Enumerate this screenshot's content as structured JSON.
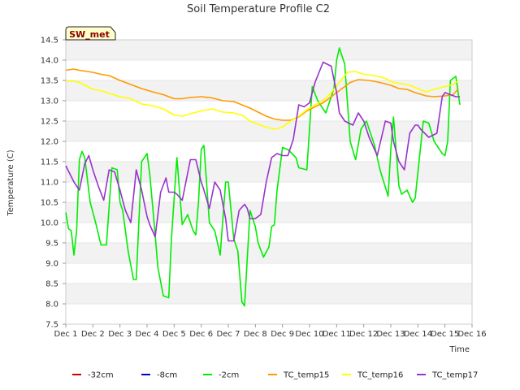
{
  "chart_data": {
    "type": "line",
    "title": "Soil Temperature Profile C2",
    "xlabel": "Time",
    "ylabel": "Temperature (C)",
    "badge": "SW_met",
    "x_range": [
      1,
      16
    ],
    "ylim": [
      7.5,
      14.5
    ],
    "x_ticks": [
      {
        "value": 1,
        "label": "Dec 1"
      },
      {
        "value": 2,
        "label": "Dec 2"
      },
      {
        "value": 3,
        "label": "Dec 3"
      },
      {
        "value": 4,
        "label": "Dec 4"
      },
      {
        "value": 5,
        "label": "Dec 5"
      },
      {
        "value": 6,
        "label": "Dec 6"
      },
      {
        "value": 7,
        "label": "Dec 7"
      },
      {
        "value": 8,
        "label": "Dec 8"
      },
      {
        "value": 9,
        "label": "Dec 9"
      },
      {
        "value": 10,
        "label": "Dec 10"
      },
      {
        "value": 11,
        "label": "Dec 11"
      },
      {
        "value": 12,
        "label": "Dec 12"
      },
      {
        "value": 13,
        "label": "Dec 13"
      },
      {
        "value": 14,
        "label": "Dec 14"
      },
      {
        "value": 15,
        "label": "Dec 15"
      },
      {
        "value": 16,
        "label": "Dec 16"
      }
    ],
    "y_ticks": [
      {
        "value": 7.5,
        "label": "7.5"
      },
      {
        "value": 8.0,
        "label": "8.0"
      },
      {
        "value": 8.5,
        "label": "8.5"
      },
      {
        "value": 9.0,
        "label": "9.0"
      },
      {
        "value": 9.5,
        "label": "9.5"
      },
      {
        "value": 10.0,
        "label": "10.0"
      },
      {
        "value": 10.5,
        "label": "10.5"
      },
      {
        "value": 11.0,
        "label": "11.0"
      },
      {
        "value": 11.5,
        "label": "11.5"
      },
      {
        "value": 12.0,
        "label": "12.0"
      },
      {
        "value": 12.5,
        "label": "12.5"
      },
      {
        "value": 13.0,
        "label": "13.0"
      },
      {
        "value": 13.5,
        "label": "13.5"
      },
      {
        "value": 14.0,
        "label": "14.0"
      },
      {
        "value": 14.5,
        "label": "14.5"
      }
    ],
    "background_bands": "alternating light gray horizontal bands",
    "legend_position": "bottom",
    "series": [
      {
        "name": "-32cm",
        "color": "#cc0000",
        "x": [],
        "y": []
      },
      {
        "name": "-8cm",
        "color": "#0000cc",
        "x": [],
        "y": []
      },
      {
        "name": "-2cm",
        "color": "#00ee00",
        "x": [
          1.0,
          1.1,
          1.2,
          1.3,
          1.4,
          1.5,
          1.6,
          1.7,
          1.9,
          2.1,
          2.3,
          2.5,
          2.7,
          2.9,
          3.0,
          3.1,
          3.3,
          3.5,
          3.6,
          3.8,
          4.0,
          4.1,
          4.3,
          4.4,
          4.6,
          4.8,
          4.9,
          5.1,
          5.3,
          5.5,
          5.7,
          5.8,
          5.9,
          6.0,
          6.1,
          6.3,
          6.5,
          6.6,
          6.7,
          6.9,
          7.0,
          7.2,
          7.35,
          7.5,
          7.6,
          7.8,
          8.0,
          8.1,
          8.3,
          8.5,
          8.6,
          8.7,
          8.8,
          9.0,
          9.2,
          9.5,
          9.6,
          9.9,
          10.1,
          10.3,
          10.6,
          10.9,
          11.0,
          11.1,
          11.3,
          11.5,
          11.7,
          11.9,
          12.1,
          12.4,
          12.6,
          12.9,
          13.0,
          13.1,
          13.3,
          13.4,
          13.6,
          13.8,
          13.9,
          14.2,
          14.4,
          14.6,
          14.9,
          15.0,
          15.1,
          15.2,
          15.4,
          15.55
        ],
        "y": [
          10.25,
          9.85,
          9.8,
          9.2,
          9.8,
          11.55,
          11.75,
          11.6,
          10.5,
          10.0,
          9.45,
          9.45,
          11.35,
          11.3,
          10.5,
          10.3,
          9.3,
          8.6,
          8.6,
          11.5,
          11.7,
          11.2,
          9.7,
          8.9,
          8.2,
          8.15,
          9.6,
          11.6,
          9.95,
          10.2,
          9.8,
          9.7,
          10.5,
          11.8,
          11.9,
          10.0,
          9.8,
          9.5,
          9.2,
          11.0,
          11.0,
          9.6,
          9.3,
          8.05,
          7.95,
          10.3,
          9.9,
          9.5,
          9.15,
          9.4,
          9.9,
          9.95,
          10.8,
          11.85,
          11.8,
          11.6,
          11.35,
          11.3,
          13.35,
          13.0,
          12.7,
          13.3,
          14.0,
          14.3,
          13.9,
          12.0,
          11.55,
          12.3,
          12.5,
          11.9,
          11.3,
          10.65,
          11.8,
          12.6,
          10.9,
          10.7,
          10.8,
          10.5,
          10.6,
          12.5,
          12.45,
          12.0,
          11.7,
          11.65,
          12.0,
          13.5,
          13.6,
          12.9
        ]
      },
      {
        "name": "TC_temp15",
        "color": "#ff9900",
        "x": [
          1.0,
          1.3,
          1.5,
          1.8,
          2.0,
          2.3,
          2.6,
          3.0,
          3.4,
          3.8,
          4.2,
          4.6,
          5.0,
          5.3,
          5.6,
          6.0,
          6.4,
          6.8,
          7.2,
          7.5,
          7.8,
          8.1,
          8.4,
          8.7,
          9.0,
          9.3,
          9.6,
          9.9,
          10.2,
          10.5,
          10.8,
          11.2,
          11.5,
          11.8,
          12.2,
          12.6,
          13.0,
          13.3,
          13.6,
          13.9,
          14.3,
          14.6,
          15.0,
          15.3,
          15.5
        ],
        "y": [
          13.75,
          13.78,
          13.75,
          13.72,
          13.7,
          13.65,
          13.62,
          13.5,
          13.4,
          13.3,
          13.22,
          13.15,
          13.05,
          13.05,
          13.08,
          13.1,
          13.07,
          13.0,
          12.98,
          12.9,
          12.82,
          12.72,
          12.62,
          12.55,
          12.52,
          12.52,
          12.6,
          12.75,
          12.85,
          12.95,
          13.1,
          13.3,
          13.45,
          13.52,
          13.5,
          13.45,
          13.38,
          13.3,
          13.28,
          13.2,
          13.12,
          13.1,
          13.12,
          13.15,
          13.3
        ]
      },
      {
        "name": "TC_temp16",
        "color": "#ffff00",
        "x": [
          1.0,
          1.3,
          1.5,
          1.8,
          2.0,
          2.3,
          2.6,
          3.0,
          3.4,
          3.8,
          4.2,
          4.6,
          5.0,
          5.3,
          5.6,
          6.0,
          6.4,
          6.8,
          7.2,
          7.5,
          7.8,
          8.1,
          8.4,
          8.7,
          9.0,
          9.3,
          9.6,
          9.9,
          10.2,
          10.5,
          10.8,
          11.1,
          11.4,
          11.7,
          12.0,
          12.4,
          12.8,
          13.1,
          13.4,
          13.7,
          14.0,
          14.3,
          14.6,
          15.0,
          15.3,
          15.5
        ],
        "y": [
          13.48,
          13.48,
          13.45,
          13.35,
          13.28,
          13.25,
          13.18,
          13.1,
          13.05,
          12.92,
          12.88,
          12.8,
          12.65,
          12.62,
          12.68,
          12.75,
          12.8,
          12.72,
          12.7,
          12.65,
          12.5,
          12.42,
          12.35,
          12.3,
          12.35,
          12.5,
          12.62,
          12.78,
          12.9,
          13.0,
          13.2,
          13.45,
          13.7,
          13.72,
          13.65,
          13.62,
          13.55,
          13.45,
          13.42,
          13.38,
          13.3,
          13.22,
          13.28,
          13.35,
          13.4,
          13.5
        ]
      },
      {
        "name": "TC_temp17",
        "color": "#9933cc",
        "x": [
          1.0,
          1.15,
          1.3,
          1.5,
          1.7,
          1.85,
          2.0,
          2.2,
          2.4,
          2.6,
          2.8,
          3.0,
          3.2,
          3.4,
          3.6,
          3.8,
          4.0,
          4.1,
          4.3,
          4.5,
          4.7,
          4.8,
          5.0,
          5.1,
          5.3,
          5.6,
          5.8,
          6.0,
          6.1,
          6.3,
          6.5,
          6.7,
          6.9,
          7.0,
          7.2,
          7.4,
          7.6,
          7.7,
          7.8,
          8.0,
          8.2,
          8.4,
          8.6,
          8.8,
          9.0,
          9.2,
          9.4,
          9.6,
          9.8,
          10.0,
          10.2,
          10.5,
          10.8,
          11.0,
          11.1,
          11.3,
          11.6,
          11.8,
          12.0,
          12.2,
          12.5,
          12.8,
          13.0,
          13.1,
          13.3,
          13.5,
          13.7,
          13.9,
          14.0,
          14.1,
          14.4,
          14.7,
          14.9,
          15.0,
          15.2,
          15.4,
          15.55
        ],
        "y": [
          11.4,
          11.2,
          11.0,
          10.8,
          11.45,
          11.65,
          11.3,
          10.9,
          10.55,
          11.3,
          11.25,
          10.8,
          10.3,
          10.0,
          11.3,
          10.8,
          10.15,
          9.95,
          9.65,
          10.75,
          11.1,
          10.75,
          10.75,
          10.7,
          10.55,
          11.55,
          11.55,
          11.0,
          10.8,
          10.35,
          11.0,
          10.8,
          10.1,
          9.55,
          9.55,
          10.3,
          10.45,
          10.35,
          10.1,
          10.1,
          10.2,
          11.0,
          11.6,
          11.7,
          11.65,
          11.65,
          12.05,
          12.9,
          12.85,
          12.95,
          13.45,
          13.95,
          13.85,
          13.2,
          12.7,
          12.5,
          12.4,
          12.7,
          12.5,
          12.1,
          11.65,
          12.5,
          12.45,
          12.0,
          11.5,
          11.3,
          12.2,
          12.4,
          12.4,
          12.3,
          12.1,
          12.2,
          13.1,
          13.2,
          13.15,
          13.1,
          13.1
        ]
      }
    ]
  }
}
